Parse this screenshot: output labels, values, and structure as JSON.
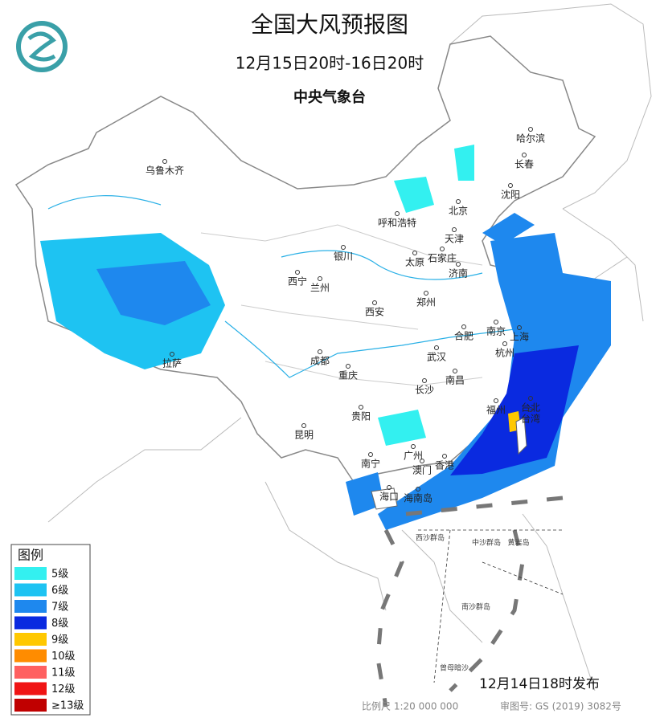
{
  "header": {
    "title": "全国大风预报图",
    "period": "12月15日20时-16日20时",
    "agency": "中央气象台"
  },
  "legend": {
    "title": "图例",
    "items": [
      {
        "label": "5级",
        "color": "#33f0f0"
      },
      {
        "label": "6级",
        "color": "#1ec3f2"
      },
      {
        "label": "7级",
        "color": "#1e88ee"
      },
      {
        "label": "8级",
        "color": "#0a2ae0"
      },
      {
        "label": "9级",
        "color": "#ffc800"
      },
      {
        "label": "10级",
        "color": "#ff8c00"
      },
      {
        "label": "11级",
        "color": "#ff6060"
      },
      {
        "label": "12级",
        "color": "#f01414"
      },
      {
        "label": "≥13级",
        "color": "#c00000"
      }
    ]
  },
  "cities": [
    "乌鲁木齐",
    "哈尔滨",
    "长春",
    "沈阳",
    "北京",
    "天津",
    "呼和浩特",
    "银川",
    "太原",
    "石家庄",
    "济南",
    "西宁",
    "兰州",
    "郑州",
    "西安",
    "南京",
    "上海",
    "合肥",
    "杭州",
    "武汉",
    "成都",
    "重庆",
    "拉萨",
    "南昌",
    "长沙",
    "福州",
    "台北",
    "贵阳",
    "昆明",
    "南宁",
    "广州",
    "澳门",
    "香港",
    "海口",
    "台湾",
    "海南岛"
  ],
  "islands": [
    "西沙群岛",
    "中沙群岛",
    "黄岩岛",
    "南沙群岛",
    "曾母暗沙"
  ],
  "footer": {
    "issued": "12月14日18时发布",
    "scale": "比例尺 1:20 000 000",
    "review_number": "审图号: GS (2019) 3082号"
  }
}
